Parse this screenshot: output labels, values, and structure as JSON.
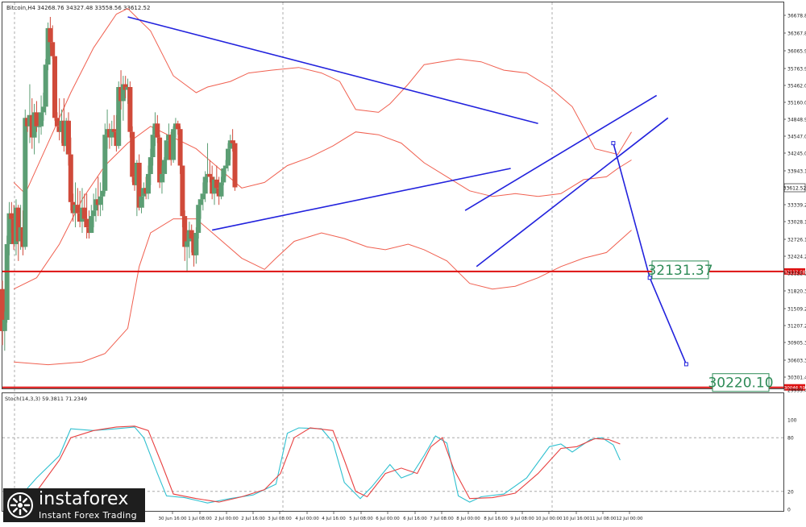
{
  "header": {
    "symbol_text": "Bitcoin,H4  34268.76 34327.48 33558.56 33612.52"
  },
  "indicator": {
    "label": "Stoch(14,3,3) 59.3811 71.2349"
  },
  "logo": {
    "name": "instaforex",
    "tagline": "Instant Forex Trading"
  },
  "colors": {
    "bull": "#5c9e74",
    "bear": "#d04a3a",
    "band": "#f06050",
    "trend": "#2222dd",
    "level": "#dd1111",
    "stoch_main": "#30c0d0",
    "stoch_signal": "#e84040",
    "callout": "#2e8b57",
    "grid": "#9a9a9a"
  },
  "chart_data": {
    "type": "candlestick",
    "y_ticks": [
      "36678.85",
      "36367.85",
      "36065.90",
      "35763.95",
      "35462.00",
      "35160.05",
      "34848.95",
      "34547.00",
      "34245.05",
      "33943.10",
      "33339.20",
      "33028.10",
      "32726.15",
      "32424.20",
      "32122.25",
      "31820.30",
      "31509.20",
      "31207.25",
      "30905.30",
      "30603.35",
      "30301.40",
      "29999.45"
    ],
    "last_price": "33612.52",
    "x_ticks": [
      "30 Jun 16:00",
      "1 Jul 08:00",
      "2 Jul 00:00",
      "2 Jul 16:00",
      "3 Jul 08:00",
      "4 Jul 00:00",
      "4 Jul 16:00",
      "5 Jul 08:00",
      "6 Jul 00:00",
      "6 Jul 16:00",
      "7 Jul 08:00",
      "8 Jul 00:00",
      "8 Jul 16:00",
      "9 Jul 08:00",
      "10 Jul 00:00",
      "10 Jul 16:00",
      "11 Jul 08:00",
      "12 Jul 00:00"
    ],
    "levels": [
      {
        "price": 32112.68,
        "label": "32131.37",
        "axis_label": "32112.68"
      },
      {
        "price": 30046.59,
        "label": "30220.10",
        "axis_label": "30046.59"
      }
    ],
    "candles": [
      [
        31800,
        31950,
        30800,
        31050
      ],
      [
        31050,
        31400,
        30700,
        31250
      ],
      [
        31250,
        32750,
        31200,
        32600
      ],
      [
        32600,
        33350,
        32400,
        33150
      ],
      [
        33150,
        33350,
        32800,
        33050
      ],
      [
        33050,
        33300,
        32500,
        32600
      ],
      [
        32600,
        33400,
        32400,
        33250
      ],
      [
        33250,
        33300,
        32300,
        32650
      ],
      [
        32650,
        33300,
        32500,
        32900
      ],
      [
        32900,
        33200,
        32400,
        32550
      ],
      [
        32550,
        35000,
        32500,
        34850
      ],
      [
        34850,
        34900,
        34600,
        34700
      ],
      [
        34700,
        35450,
        34400,
        34900
      ],
      [
        34900,
        35200,
        34300,
        34500
      ],
      [
        34500,
        35100,
        34200,
        34950
      ],
      [
        34950,
        35150,
        34600,
        34700
      ],
      [
        34700,
        34950,
        34400,
        34700
      ],
      [
        34700,
        35250,
        34550,
        34950
      ],
      [
        34950,
        35300,
        34800,
        35050
      ],
      [
        35050,
        35900,
        34900,
        35800
      ],
      [
        35800,
        36550,
        35700,
        36450
      ],
      [
        36450,
        36650,
        36100,
        36200
      ],
      [
        36200,
        36500,
        35900,
        35950
      ],
      [
        35950,
        35950,
        34800,
        34850
      ],
      [
        34850,
        34950,
        34600,
        34700
      ],
      [
        34700,
        35200,
        34450,
        34600
      ],
      [
        34600,
        35000,
        34400,
        34800
      ],
      [
        34800,
        35200,
        34250,
        34350
      ],
      [
        34350,
        34850,
        34200,
        34800
      ],
      [
        34800,
        34950,
        34000,
        34200
      ],
      [
        34200,
        34500,
        33200,
        33350
      ],
      [
        33350,
        33500,
        33000,
        33150
      ],
      [
        33150,
        33700,
        32900,
        33300
      ],
      [
        33300,
        33600,
        33000,
        33150
      ],
      [
        33150,
        33550,
        32900,
        33000
      ],
      [
        33000,
        33600,
        32800,
        33250
      ],
      [
        33250,
        33500,
        32900,
        33050
      ],
      [
        33050,
        33500,
        32700,
        32900
      ],
      [
        32900,
        33200,
        32700,
        32800
      ],
      [
        32800,
        33300,
        32800,
        33100
      ],
      [
        33100,
        33500,
        32900,
        33200
      ],
      [
        33200,
        33600,
        33000,
        33400
      ],
      [
        33400,
        33800,
        33100,
        33300
      ],
      [
        33300,
        33700,
        33100,
        33450
      ],
      [
        33450,
        33900,
        33200,
        33550
      ],
      [
        33550,
        34750,
        33500,
        34550
      ],
      [
        34550,
        35000,
        34300,
        34650
      ],
      [
        34650,
        34750,
        34300,
        34500
      ],
      [
        34500,
        34800,
        34350,
        34650
      ],
      [
        34650,
        34900,
        34500,
        34600
      ],
      [
        34600,
        34900,
        34250,
        34350
      ],
      [
        34350,
        35500,
        34300,
        35400
      ],
      [
        35400,
        35700,
        35000,
        35150
      ],
      [
        35150,
        35600,
        34800,
        35450
      ],
      [
        35450,
        35600,
        35200,
        35350
      ],
      [
        35350,
        35550,
        35100,
        35400
      ],
      [
        35400,
        35500,
        34500,
        34600
      ],
      [
        34600,
        34700,
        33700,
        33800
      ],
      [
        33800,
        33900,
        33550,
        33650
      ],
      [
        33650,
        34100,
        33100,
        34050
      ],
      [
        34050,
        34200,
        33200,
        33250
      ],
      [
        33250,
        33600,
        33150,
        33450
      ],
      [
        33450,
        33700,
        33250,
        33600
      ],
      [
        33600,
        33800,
        33400,
        33500
      ],
      [
        33500,
        34000,
        33400,
        33850
      ],
      [
        33850,
        34300,
        33650,
        34150
      ],
      [
        34150,
        34700,
        34000,
        34550
      ],
      [
        34550,
        34950,
        34350,
        34750
      ],
      [
        34750,
        34900,
        34400,
        34500
      ],
      [
        34500,
        34550,
        33600,
        33700
      ],
      [
        33700,
        34000,
        33500,
        33850
      ],
      [
        33850,
        34150,
        33700,
        34100
      ],
      [
        34100,
        34550,
        33850,
        34450
      ],
      [
        34450,
        34750,
        34300,
        34550
      ],
      [
        34550,
        34600,
        34000,
        34100
      ],
      [
        34100,
        34700,
        34050,
        34650
      ],
      [
        34650,
        34850,
        34500,
        34750
      ],
      [
        34750,
        34800,
        34550,
        34650
      ],
      [
        34650,
        34700,
        33850,
        34000
      ],
      [
        34000,
        34000,
        32900,
        33100
      ],
      [
        33100,
        33200,
        32300,
        32550
      ],
      [
        32550,
        32800,
        32100,
        32650
      ],
      [
        32650,
        33000,
        32350,
        32850
      ],
      [
        32850,
        32950,
        32450,
        32700
      ],
      [
        32700,
        32800,
        32200,
        32400
      ],
      [
        32400,
        32900,
        32250,
        32800
      ],
      [
        32800,
        33400,
        32700,
        33300
      ],
      [
        33300,
        33500,
        33050,
        33400
      ],
      [
        33400,
        33700,
        33200,
        33500
      ],
      [
        33500,
        33900,
        33350,
        33800
      ],
      [
        33800,
        34400,
        33700,
        33850
      ],
      [
        33850,
        34100,
        33700,
        33800
      ],
      [
        33800,
        34000,
        33400,
        33500
      ],
      [
        33500,
        33800,
        33300,
        33750
      ],
      [
        33750,
        34000,
        33500,
        33600
      ],
      [
        33600,
        33800,
        33300,
        33450
      ],
      [
        33450,
        33800,
        33400,
        33700
      ],
      [
        33700,
        34000,
        33650,
        33950
      ],
      [
        33950,
        34100,
        33800,
        34000
      ],
      [
        34000,
        34400,
        33900,
        34300
      ],
      [
        34300,
        34550,
        34100,
        34450
      ],
      [
        34450,
        34650,
        34250,
        34400
      ],
      [
        34400,
        34450,
        33550,
        33612
      ]
    ],
    "bollinger": {
      "upper": [
        [
          5,
          33700
        ],
        [
          10,
          33500
        ],
        [
          20,
          34400
        ],
        [
          30,
          35300
        ],
        [
          40,
          36100
        ],
        [
          50,
          36700
        ],
        [
          55,
          36800
        ],
        [
          65,
          36400
        ],
        [
          75,
          35600
        ],
        [
          85,
          35300
        ],
        [
          90,
          35400
        ],
        [
          100,
          35500
        ],
        [
          108,
          35650
        ],
        [
          118,
          35700
        ],
        [
          130,
          35750
        ],
        [
          140,
          35650
        ],
        [
          148,
          35500
        ],
        [
          155,
          35000
        ],
        [
          165,
          34950
        ],
        [
          170,
          35100
        ],
        [
          178,
          35450
        ],
        [
          185,
          35800
        ],
        [
          200,
          35900
        ],
        [
          210,
          35850
        ],
        [
          220,
          35700
        ],
        [
          230,
          35650
        ],
        [
          240,
          35400
        ],
        [
          250,
          35050
        ],
        [
          260,
          34300
        ],
        [
          270,
          34200
        ],
        [
          276,
          34600
        ]
      ],
      "middle": [
        [
          5,
          31800
        ],
        [
          15,
          32000
        ],
        [
          25,
          32600
        ],
        [
          35,
          33400
        ],
        [
          45,
          34000
        ],
        [
          55,
          34400
        ],
        [
          65,
          34700
        ],
        [
          75,
          34500
        ],
        [
          85,
          34300
        ],
        [
          95,
          33950
        ],
        [
          105,
          33600
        ],
        [
          115,
          33700
        ],
        [
          125,
          34000
        ],
        [
          135,
          34150
        ],
        [
          145,
          34350
        ],
        [
          155,
          34600
        ],
        [
          165,
          34550
        ],
        [
          175,
          34400
        ],
        [
          185,
          34050
        ],
        [
          195,
          33800
        ],
        [
          205,
          33550
        ],
        [
          215,
          33450
        ],
        [
          225,
          33500
        ],
        [
          235,
          33450
        ],
        [
          245,
          33500
        ],
        [
          255,
          33750
        ],
        [
          265,
          33800
        ],
        [
          270,
          33950
        ],
        [
          276,
          34100
        ]
      ],
      "lower": [
        [
          5,
          30500
        ],
        [
          20,
          30450
        ],
        [
          35,
          30500
        ],
        [
          45,
          30650
        ],
        [
          55,
          31100
        ],
        [
          60,
          32200
        ],
        [
          65,
          32800
        ],
        [
          75,
          33050
        ],
        [
          85,
          33050
        ],
        [
          95,
          32700
        ],
        [
          105,
          32350
        ],
        [
          115,
          32150
        ],
        [
          120,
          32350
        ],
        [
          128,
          32650
        ],
        [
          140,
          32800
        ],
        [
          150,
          32700
        ],
        [
          160,
          32550
        ],
        [
          168,
          32500
        ],
        [
          178,
          32600
        ],
        [
          185,
          32500
        ],
        [
          195,
          32300
        ],
        [
          205,
          31900
        ],
        [
          215,
          31800
        ],
        [
          225,
          31850
        ],
        [
          235,
          32000
        ],
        [
          245,
          32200
        ],
        [
          255,
          32350
        ],
        [
          265,
          32450
        ],
        [
          276,
          32850
        ]
      ]
    },
    "trendlines": [
      {
        "a": [
          55,
          36650
        ],
        "b": [
          235,
          34750
        ]
      },
      {
        "a": [
          92,
          32850
        ],
        "b": [
          223,
          33950
        ]
      },
      {
        "a": [
          203,
          33200
        ],
        "b": [
          287,
          35250
        ]
      },
      {
        "a": [
          208,
          32200
        ],
        "b": [
          292,
          34850
        ]
      },
      {
        "a": [
          268,
          34400
        ],
        "b": [
          284,
          32000
        ]
      },
      {
        "a": [
          284,
          32000
        ],
        "b": [
          300,
          30460
        ]
      }
    ],
    "stochastic": {
      "y_ticks": [
        "100",
        "80",
        "20",
        "0"
      ],
      "main": [
        [
          8,
          15
        ],
        [
          15,
          35
        ],
        [
          25,
          60
        ],
        [
          30,
          90
        ],
        [
          40,
          88
        ],
        [
          50,
          90
        ],
        [
          58,
          92
        ],
        [
          62,
          80
        ],
        [
          68,
          40
        ],
        [
          72,
          15
        ],
        [
          80,
          13
        ],
        [
          85,
          10
        ],
        [
          90,
          7
        ],
        [
          100,
          12
        ],
        [
          110,
          16
        ],
        [
          120,
          28
        ],
        [
          125,
          85
        ],
        [
          130,
          91
        ],
        [
          140,
          90
        ],
        [
          145,
          75
        ],
        [
          150,
          30
        ],
        [
          157,
          12
        ],
        [
          162,
          25
        ],
        [
          170,
          50
        ],
        [
          175,
          35
        ],
        [
          180,
          40
        ],
        [
          185,
          60
        ],
        [
          190,
          82
        ],
        [
          195,
          74
        ],
        [
          200,
          15
        ],
        [
          205,
          8
        ],
        [
          210,
          14
        ],
        [
          220,
          17
        ],
        [
          230,
          35
        ],
        [
          240,
          70
        ],
        [
          245,
          73
        ],
        [
          250,
          64
        ],
        [
          258,
          78
        ],
        [
          263,
          80
        ],
        [
          268,
          72
        ],
        [
          271,
          55
        ]
      ],
      "signal": [
        [
          8,
          8
        ],
        [
          15,
          20
        ],
        [
          25,
          55
        ],
        [
          30,
          80
        ],
        [
          40,
          88
        ],
        [
          50,
          92
        ],
        [
          58,
          93
        ],
        [
          64,
          88
        ],
        [
          70,
          50
        ],
        [
          75,
          17
        ],
        [
          85,
          12
        ],
        [
          95,
          8
        ],
        [
          105,
          14
        ],
        [
          115,
          22
        ],
        [
          122,
          40
        ],
        [
          128,
          80
        ],
        [
          135,
          91
        ],
        [
          145,
          88
        ],
        [
          150,
          55
        ],
        [
          155,
          20
        ],
        [
          160,
          14
        ],
        [
          168,
          40
        ],
        [
          175,
          46
        ],
        [
          182,
          40
        ],
        [
          188,
          70
        ],
        [
          193,
          80
        ],
        [
          198,
          45
        ],
        [
          205,
          12
        ],
        [
          215,
          13
        ],
        [
          225,
          18
        ],
        [
          235,
          40
        ],
        [
          245,
          68
        ],
        [
          252,
          70
        ],
        [
          260,
          79
        ],
        [
          266,
          78
        ],
        [
          271,
          73
        ]
      ]
    }
  }
}
